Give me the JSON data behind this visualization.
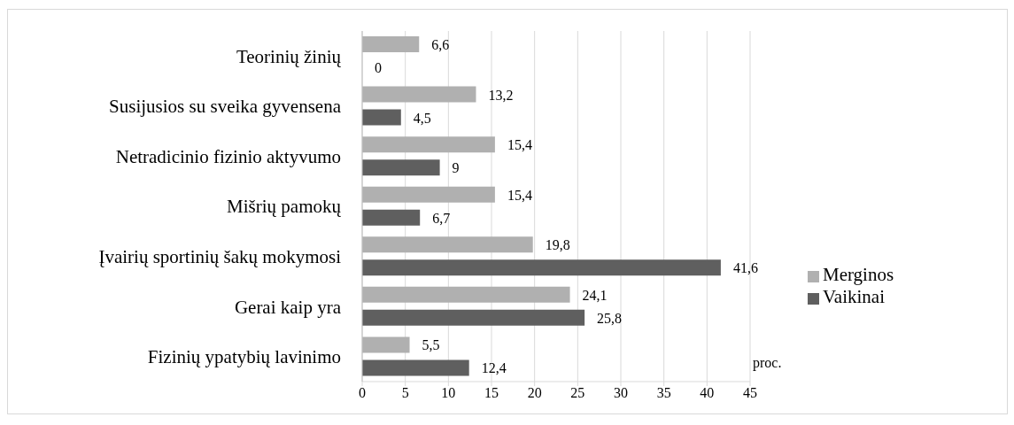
{
  "chart_data": {
    "type": "bar",
    "orientation": "horizontal",
    "categories": [
      "Teorinių žinių",
      "Susijusios su sveika gyvensena",
      "Netradicinio fizinio aktyvumo",
      "Mišrių pamokų",
      "Įvairių sportinių šakų mokymosi",
      "Gerai kaip yra",
      "Fizinių ypatybių lavinimo"
    ],
    "series": [
      {
        "name": "Merginos",
        "color": "#b0b0b0",
        "values": [
          6.6,
          13.2,
          15.4,
          15.4,
          19.8,
          24.1,
          5.5
        ],
        "value_labels": [
          "6,6",
          "13,2",
          "15,4",
          "15,4",
          "19,8",
          "24,1",
          "5,5"
        ]
      },
      {
        "name": "Vaikinai",
        "color": "#5f5f5f",
        "values": [
          0,
          4.5,
          9,
          6.7,
          41.6,
          25.8,
          12.4
        ],
        "value_labels": [
          "0",
          "4,5",
          "9",
          "6,7",
          "41,6",
          "25,8",
          "12,4"
        ]
      }
    ],
    "xlim": [
      0,
      45
    ],
    "xticks": [
      0,
      5,
      10,
      15,
      20,
      25,
      30,
      35,
      40,
      45
    ],
    "xlabel": "proc.",
    "grid": "x",
    "legend": "right"
  }
}
